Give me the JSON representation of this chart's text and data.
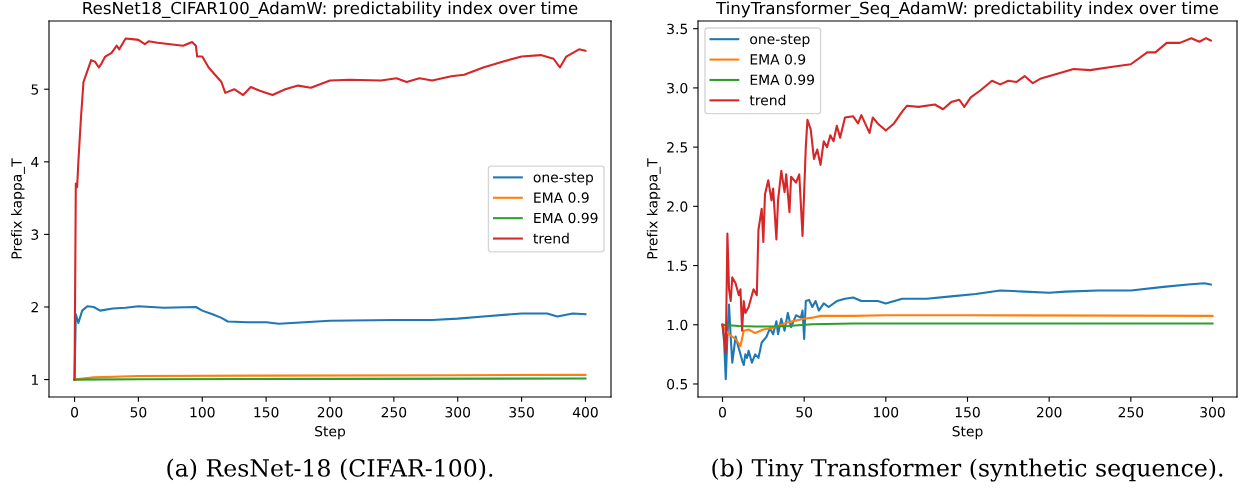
{
  "chart_data": [
    {
      "type": "line",
      "title": "ResNet18_CIFAR100_AdamW: predictability index over time",
      "xlabel": "Step",
      "ylabel": "Prefix kappa_T",
      "annotations": [
        "(a) ResNet-18 (CIFAR-100)."
      ],
      "xlim": [
        -20,
        420
      ],
      "ylim": [
        0.76,
        5.94
      ],
      "xticks": [
        0,
        50,
        100,
        150,
        200,
        250,
        300,
        350,
        400
      ],
      "yticks": [
        1,
        2,
        3,
        4,
        5
      ],
      "grid": false,
      "legend": "center right",
      "series": [
        {
          "name": "one-step",
          "color": "#1f77b4",
          "x": [
            0,
            1,
            3,
            6,
            10,
            15,
            20,
            30,
            40,
            50,
            70,
            95,
            100,
            108,
            115,
            120,
            135,
            150,
            160,
            180,
            200,
            250,
            280,
            300,
            320,
            350,
            370,
            378,
            390,
            400
          ],
          "values": [
            1,
            1.9,
            1.78,
            1.95,
            2.01,
            2.0,
            1.95,
            1.98,
            1.99,
            2.01,
            1.99,
            2.0,
            1.95,
            1.9,
            1.85,
            1.8,
            1.79,
            1.79,
            1.77,
            1.79,
            1.81,
            1.82,
            1.82,
            1.84,
            1.87,
            1.91,
            1.91,
            1.87,
            1.91,
            1.9
          ]
        },
        {
          "name": "EMA 0.9",
          "color": "#ff7f0e",
          "x": [
            0,
            5,
            15,
            50,
            150,
            300,
            400
          ],
          "values": [
            1,
            1.01,
            1.03,
            1.05,
            1.055,
            1.06,
            1.065
          ]
        },
        {
          "name": "EMA 0.99",
          "color": "#2ca02c",
          "x": [
            0,
            50,
            200,
            400
          ],
          "values": [
            1,
            1.005,
            1.01,
            1.015
          ]
        },
        {
          "name": "trend",
          "color": "#d62728",
          "x": [
            0,
            1,
            2,
            3,
            5,
            7,
            10,
            13,
            16,
            19,
            21,
            24,
            29,
            33,
            35,
            40,
            45,
            50,
            55,
            58,
            65,
            75,
            85,
            92,
            95,
            96,
            100,
            105,
            110,
            115,
            118,
            125,
            132,
            138,
            145,
            155,
            165,
            175,
            185,
            200,
            215,
            240,
            252,
            260,
            270,
            280,
            295,
            305,
            320,
            335,
            350,
            365,
            375,
            380,
            385,
            395,
            400
          ],
          "values": [
            1,
            3.7,
            3.65,
            4.0,
            4.6,
            5.1,
            5.25,
            5.4,
            5.38,
            5.3,
            5.35,
            5.45,
            5.5,
            5.6,
            5.55,
            5.7,
            5.69,
            5.68,
            5.62,
            5.66,
            5.64,
            5.62,
            5.6,
            5.65,
            5.6,
            5.45,
            5.45,
            5.3,
            5.2,
            5.1,
            4.95,
            5.0,
            4.92,
            5.03,
            4.98,
            4.92,
            5.0,
            5.05,
            5.02,
            5.12,
            5.13,
            5.12,
            5.15,
            5.1,
            5.15,
            5.12,
            5.18,
            5.2,
            5.3,
            5.38,
            5.45,
            5.47,
            5.42,
            5.3,
            5.45,
            5.55,
            5.53
          ]
        }
      ]
    },
    {
      "type": "line",
      "title": "TinyTransformer_Seq_AdamW: predictability index over time",
      "xlabel": "Step",
      "ylabel": "Prefix kappa_T",
      "annotations": [
        "(b) Tiny Transformer (synthetic sequence)."
      ],
      "xlim": [
        -15,
        315
      ],
      "ylim": [
        0.39,
        3.565
      ],
      "xticks": [
        0,
        50,
        100,
        150,
        200,
        250,
        300
      ],
      "yticks": [
        {
          "value": 0.5,
          "label": "0.5"
        },
        {
          "value": 1.0,
          "label": "1.0"
        },
        {
          "value": 1.5,
          "label": "1.5"
        },
        {
          "value": 2.0,
          "label": "2.0"
        },
        {
          "value": 2.5,
          "label": "2.5"
        },
        {
          "value": 3.0,
          "label": "3.0"
        },
        {
          "value": 3.5,
          "label": "3.5"
        }
      ],
      "grid": false,
      "legend": "top left",
      "series": [
        {
          "name": "one-step",
          "color": "#1f77b4",
          "x": [
            0,
            1,
            2,
            3,
            4,
            5,
            6,
            8,
            10,
            12,
            13,
            14,
            15,
            16,
            18,
            20,
            22,
            24,
            27,
            29,
            31,
            33,
            34,
            36,
            38,
            40,
            42,
            45,
            48,
            49,
            50,
            51,
            53,
            55,
            57,
            59,
            62,
            65,
            70,
            75,
            80,
            85,
            95,
            100,
            110,
            125,
            140,
            155,
            170,
            185,
            200,
            210,
            230,
            250,
            270,
            285,
            295,
            299
          ],
          "values": [
            1.0,
            0.85,
            0.54,
            0.9,
            1.17,
            0.9,
            0.68,
            0.9,
            0.8,
            0.7,
            0.66,
            0.75,
            0.72,
            0.78,
            0.68,
            0.75,
            0.72,
            0.85,
            0.9,
            0.97,
            0.92,
            1.03,
            0.92,
            1.05,
            0.95,
            1.1,
            0.98,
            1.08,
            1.06,
            1.12,
            0.88,
            1.2,
            1.21,
            1.15,
            1.2,
            1.12,
            1.18,
            1.15,
            1.2,
            1.22,
            1.23,
            1.2,
            1.2,
            1.18,
            1.22,
            1.22,
            1.24,
            1.26,
            1.29,
            1.28,
            1.27,
            1.28,
            1.29,
            1.29,
            1.32,
            1.34,
            1.35,
            1.34
          ]
        },
        {
          "name": "EMA 0.9",
          "color": "#ff7f0e",
          "x": [
            0,
            2,
            4,
            8,
            11,
            13,
            16,
            20,
            25,
            30,
            40,
            50,
            55,
            60,
            80,
            100,
            150,
            300
          ],
          "values": [
            1.0,
            0.95,
            0.92,
            0.88,
            0.82,
            0.95,
            0.96,
            0.93,
            0.96,
            0.97,
            1.02,
            1.05,
            1.06,
            1.075,
            1.075,
            1.08,
            1.08,
            1.075
          ]
        },
        {
          "name": "EMA 0.99",
          "color": "#2ca02c",
          "x": [
            0,
            10,
            20,
            30,
            40,
            55,
            80,
            300
          ],
          "values": [
            1.0,
            0.99,
            0.985,
            0.985,
            0.99,
            1.005,
            1.01,
            1.01
          ]
        },
        {
          "name": "trend",
          "color": "#d62728",
          "x": [
            0,
            1,
            2,
            3,
            4,
            5,
            6,
            8,
            10,
            11,
            12,
            13,
            14,
            16,
            19,
            21,
            22,
            24,
            25,
            26,
            28,
            30,
            31,
            33,
            34,
            36,
            38,
            39,
            41,
            42,
            45,
            47,
            49,
            51,
            52,
            54,
            56,
            58,
            60,
            62,
            64,
            66,
            68,
            70,
            72,
            75,
            80,
            83,
            85,
            90,
            92,
            95,
            100,
            105,
            110,
            113,
            120,
            130,
            135,
            140,
            145,
            148,
            152,
            158,
            165,
            170,
            175,
            180,
            185,
            190,
            195,
            205,
            215,
            225,
            240,
            250,
            260,
            265,
            272,
            280,
            287,
            292,
            296,
            299
          ],
          "values": [
            1.0,
            0.9,
            0.76,
            1.77,
            1.3,
            1.2,
            1.4,
            1.35,
            1.25,
            1.3,
            0.95,
            1.2,
            1.1,
            1.15,
            1.3,
            1.25,
            1.8,
            1.98,
            1.7,
            2.1,
            2.22,
            2.05,
            2.15,
            1.72,
            2.05,
            2.3,
            2.12,
            2.27,
            1.95,
            2.25,
            2.2,
            2.27,
            1.75,
            2.5,
            2.73,
            2.65,
            2.4,
            2.48,
            2.35,
            2.55,
            2.5,
            2.6,
            2.55,
            2.68,
            2.58,
            2.75,
            2.76,
            2.7,
            2.77,
            2.62,
            2.75,
            2.7,
            2.64,
            2.7,
            2.8,
            2.85,
            2.84,
            2.86,
            2.82,
            2.88,
            2.9,
            2.84,
            2.92,
            2.98,
            3.06,
            3.03,
            3.06,
            3.05,
            3.1,
            3.04,
            3.08,
            3.12,
            3.16,
            3.15,
            3.18,
            3.2,
            3.3,
            3.3,
            3.38,
            3.38,
            3.42,
            3.39,
            3.42,
            3.4
          ]
        }
      ]
    }
  ]
}
